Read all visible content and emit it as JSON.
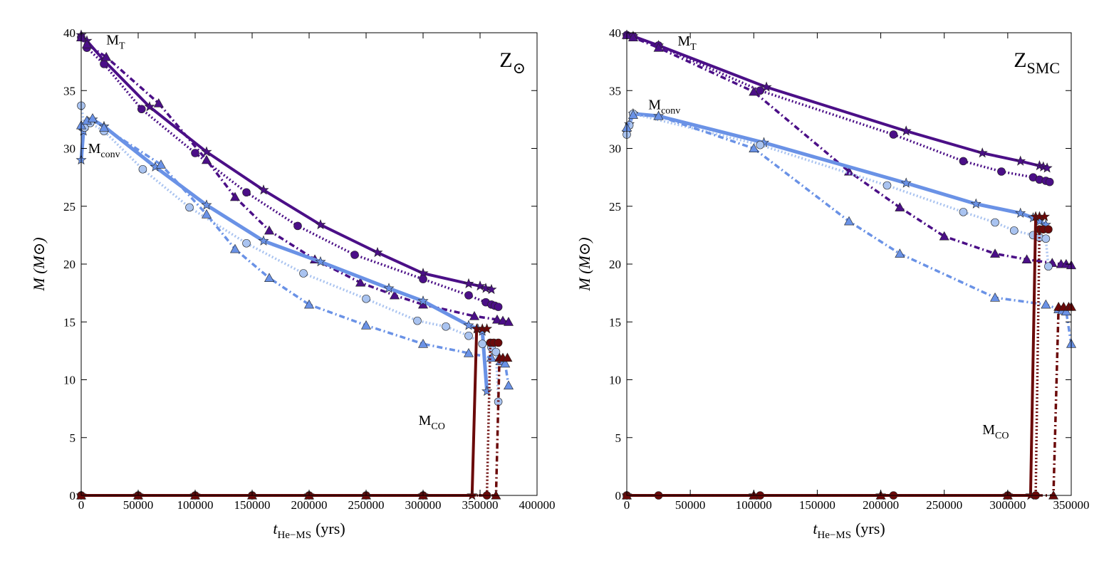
{
  "chart_data": [
    {
      "type": "line",
      "title": "Z⊙",
      "title_main": "Z",
      "title_sub": "⊙",
      "xlabel_main": "t",
      "xlabel_sub": "He−MS",
      "xlabel_unit": "(yrs)",
      "ylabel": "M (M⊙)",
      "xlim": [
        0,
        400000
      ],
      "ylim": [
        0,
        40
      ],
      "xticks": [
        0,
        50000,
        100000,
        150000,
        200000,
        250000,
        300000,
        350000,
        400000
      ],
      "xtick_labels": [
        "0",
        "50000",
        "100000",
        "150000",
        "200000",
        "250000",
        "300000",
        "350000",
        "400000"
      ],
      "yticks": [
        0,
        5,
        10,
        15,
        20,
        25,
        30,
        35,
        40
      ],
      "ytick_labels": [
        "0",
        "5",
        "10",
        "15",
        "20",
        "25",
        "30",
        "35",
        "40"
      ],
      "annotations": [
        {
          "id": "mt",
          "main": "M",
          "sub": "T",
          "x": 22000,
          "y": 39.0
        },
        {
          "id": "mconv",
          "main": "M",
          "sub": "conv",
          "x": 6000,
          "y": 29.6
        },
        {
          "id": "mco",
          "main": "M",
          "sub": "CO",
          "x": 296000,
          "y": 6.1
        }
      ],
      "series": [
        {
          "name": "M_T star",
          "group": "MT",
          "color": "#4b0f87",
          "style": "solid",
          "marker": "star",
          "x": [
            0,
            5000,
            20000,
            60000,
            110000,
            160000,
            210000,
            260000,
            300000,
            340000,
            350000,
            355000,
            360000
          ],
          "y": [
            39.8,
            39.3,
            37.6,
            33.6,
            29.7,
            26.4,
            23.4,
            21.0,
            19.2,
            18.3,
            18.1,
            17.9,
            17.8
          ]
        },
        {
          "name": "M_T circle",
          "group": "MT",
          "color": "#4b0f87",
          "style": "dotted",
          "marker": "circle",
          "x": [
            0,
            5000,
            20000,
            53000,
            100000,
            145000,
            190000,
            240000,
            300000,
            340000,
            355000,
            360000,
            363000,
            366000
          ],
          "y": [
            39.6,
            38.7,
            37.3,
            33.4,
            29.6,
            26.2,
            23.3,
            20.8,
            18.7,
            17.3,
            16.7,
            16.5,
            16.4,
            16.3
          ]
        },
        {
          "name": "M_T triangle",
          "group": "MT",
          "color": "#4b0f87",
          "style": "dashdot",
          "marker": "triangle",
          "x": [
            0,
            5000,
            22000,
            68000,
            110000,
            135000,
            165000,
            205000,
            245000,
            275000,
            300000,
            345000,
            365000,
            370000,
            375000
          ],
          "y": [
            39.6,
            39.0,
            37.9,
            33.9,
            29.0,
            25.8,
            22.9,
            20.4,
            18.4,
            17.3,
            16.5,
            15.5,
            15.2,
            15.1,
            15.0
          ]
        },
        {
          "name": "M_conv star",
          "group": "Mconv",
          "color": "#6a92e6",
          "style": "solid",
          "marker": "star",
          "width": 5,
          "x": [
            0,
            2000,
            6000,
            10000,
            20000,
            65000,
            110000,
            160000,
            210000,
            270000,
            300000,
            340000,
            348000,
            352000,
            356000
          ],
          "y": [
            29.0,
            31.5,
            32.3,
            32.5,
            31.9,
            28.4,
            25.1,
            22.0,
            20.2,
            17.9,
            16.8,
            14.7,
            14.4,
            14.2,
            9.0
          ]
        },
        {
          "name": "M_conv circle",
          "group": "Mconv",
          "color": "#a9c3f0",
          "style": "dotted",
          "marker": "circle",
          "x": [
            0,
            3000,
            8000,
            20000,
            54000,
            95000,
            145000,
            195000,
            250000,
            295000,
            320000,
            340000,
            352000,
            360000,
            364000,
            366000
          ],
          "y": [
            33.7,
            31.8,
            32.2,
            31.5,
            28.2,
            24.9,
            21.8,
            19.2,
            17.0,
            15.1,
            14.6,
            13.8,
            13.1,
            12.8,
            12.4,
            8.1
          ]
        },
        {
          "name": "M_conv triangle",
          "group": "Mconv",
          "color": "#6a92e6",
          "style": "dashdot",
          "marker": "triangle",
          "x": [
            0,
            5000,
            10000,
            20000,
            70000,
            110000,
            135000,
            165000,
            200000,
            250000,
            300000,
            340000,
            360000,
            368000,
            372000,
            375000
          ],
          "y": [
            32.0,
            32.4,
            32.6,
            31.8,
            28.6,
            24.3,
            21.3,
            18.8,
            16.5,
            14.7,
            13.1,
            12.3,
            11.9,
            11.6,
            11.4,
            9.5
          ]
        },
        {
          "name": "M_CO star",
          "group": "MCO",
          "color": "#6b0909",
          "style": "solid",
          "marker": "star",
          "x": [
            0,
            50000,
            100000,
            200000,
            300000,
            343000,
            347000,
            352000,
            356000
          ],
          "y": [
            0.0,
            0.0,
            0.0,
            0.0,
            0.0,
            0.0,
            14.4,
            14.4,
            14.4
          ]
        },
        {
          "name": "M_CO circle",
          "group": "MCO",
          "color": "#6b0909",
          "style": "dotted",
          "marker": "circle",
          "x": [
            0,
            50000,
            100000,
            150000,
            200000,
            250000,
            300000,
            356000,
            359000,
            362000,
            366000
          ],
          "y": [
            0.0,
            0.0,
            0.0,
            0.0,
            0.0,
            0.0,
            0.0,
            0.0,
            13.2,
            13.2,
            13.2
          ]
        },
        {
          "name": "M_CO triangle",
          "group": "MCO",
          "color": "#6b0909",
          "style": "dashdot",
          "marker": "triangle",
          "x": [
            0,
            50000,
            100000,
            150000,
            200000,
            250000,
            300000,
            364000,
            367000,
            370000,
            374000
          ],
          "y": [
            0.0,
            0.0,
            0.0,
            0.0,
            0.0,
            0.0,
            0.0,
            0.0,
            11.9,
            11.9,
            11.9
          ]
        }
      ]
    },
    {
      "type": "line",
      "title": "ZSMC",
      "title_main": "Z",
      "title_sub": "SMC",
      "xlabel_main": "t",
      "xlabel_sub": "He−MS",
      "xlabel_unit": "(yrs)",
      "ylabel": "M (M⊙)",
      "xlim": [
        0,
        350000
      ],
      "ylim": [
        0,
        40
      ],
      "xticks": [
        0,
        50000,
        100000,
        150000,
        200000,
        250000,
        300000,
        350000
      ],
      "xtick_labels": [
        "0",
        "50000",
        "100000",
        "150000",
        "200000",
        "250000",
        "300000",
        "350000"
      ],
      "yticks": [
        0,
        5,
        10,
        15,
        20,
        25,
        30,
        35,
        40
      ],
      "ytick_labels": [
        "0",
        "5",
        "10",
        "15",
        "20",
        "25",
        "30",
        "35",
        "40"
      ],
      "annotations": [
        {
          "id": "mt",
          "main": "M",
          "sub": "T",
          "x": 40000,
          "y": 38.9
        },
        {
          "id": "mconv",
          "main": "M",
          "sub": "conv",
          "x": 17000,
          "y": 33.4
        },
        {
          "id": "mco",
          "main": "M",
          "sub": "CO",
          "x": 280000,
          "y": 5.3
        }
      ],
      "series": [
        {
          "name": "M_T star",
          "group": "MT",
          "color": "#4b0f87",
          "style": "solid",
          "marker": "star",
          "x": [
            0,
            5000,
            25000,
            110000,
            220000,
            280000,
            310000,
            325000,
            328000,
            331000
          ],
          "y": [
            39.8,
            39.7,
            38.9,
            35.3,
            31.5,
            29.6,
            28.9,
            28.5,
            28.4,
            28.3
          ]
        },
        {
          "name": "M_T circle",
          "group": "MT",
          "color": "#4b0f87",
          "style": "dotted",
          "marker": "circle",
          "x": [
            0,
            5000,
            25000,
            105000,
            210000,
            265000,
            295000,
            320000,
            325000,
            330000,
            333000
          ],
          "y": [
            39.8,
            39.7,
            38.9,
            35.0,
            31.2,
            28.9,
            28.0,
            27.5,
            27.3,
            27.2,
            27.1
          ]
        },
        {
          "name": "M_T triangle",
          "group": "MT",
          "color": "#4b0f87",
          "style": "dashdot",
          "marker": "triangle",
          "x": [
            0,
            5000,
            25000,
            100000,
            175000,
            215000,
            250000,
            290000,
            315000,
            335000,
            342000,
            346000,
            350000
          ],
          "y": [
            39.8,
            39.6,
            38.7,
            34.9,
            28.0,
            24.9,
            22.4,
            20.9,
            20.4,
            20.1,
            20.0,
            20.0,
            19.9
          ]
        },
        {
          "name": "M_conv star",
          "group": "Mconv",
          "color": "#6a92e6",
          "style": "solid",
          "marker": "star",
          "width": 5,
          "x": [
            0,
            2000,
            5000,
            25000,
            108000,
            220000,
            275000,
            310000,
            320000,
            325000,
            330000
          ],
          "y": [
            31.4,
            32.1,
            33.0,
            32.8,
            30.5,
            27.0,
            25.2,
            24.4,
            24.0,
            23.7,
            23.4
          ]
        },
        {
          "name": "M_conv circle",
          "group": "Mconv",
          "color": "#a9c3f0",
          "style": "dotted",
          "marker": "circle",
          "x": [
            0,
            2000,
            5000,
            105000,
            205000,
            265000,
            290000,
            305000,
            320000,
            325000,
            330000,
            332000
          ],
          "y": [
            31.2,
            32.0,
            33.0,
            30.3,
            26.8,
            24.5,
            23.6,
            22.9,
            22.5,
            22.3,
            22.2,
            19.8
          ]
        },
        {
          "name": "M_conv triangle",
          "group": "Mconv",
          "color": "#6a92e6",
          "style": "dashdot",
          "marker": "triangle",
          "x": [
            0,
            5000,
            25000,
            100000,
            175000,
            215000,
            290000,
            330000,
            340000,
            343000,
            346000,
            350000
          ],
          "y": [
            31.8,
            32.9,
            32.8,
            30.0,
            23.7,
            20.9,
            17.1,
            16.5,
            16.1,
            16.0,
            15.9,
            13.1
          ]
        },
        {
          "name": "M_CO star",
          "group": "MCO",
          "color": "#6b0909",
          "style": "solid",
          "marker": "star",
          "x": [
            0,
            100000,
            200000,
            300000,
            318000,
            322000,
            325000,
            329000
          ],
          "y": [
            0.0,
            0.0,
            0.0,
            0.0,
            0.0,
            24.1,
            24.1,
            24.1
          ]
        },
        {
          "name": "M_CO circle",
          "group": "MCO",
          "color": "#6b0909",
          "style": "dotted",
          "marker": "circle",
          "x": [
            0,
            25000,
            105000,
            210000,
            300000,
            322000,
            325000,
            328000,
            332000
          ],
          "y": [
            0.0,
            0.0,
            0.0,
            0.0,
            0.0,
            0.0,
            23.0,
            23.0,
            23.0
          ]
        },
        {
          "name": "M_CO triangle",
          "group": "MCO",
          "color": "#6b0909",
          "style": "dashdot",
          "marker": "triangle",
          "x": [
            0,
            100000,
            200000,
            300000,
            336000,
            340000,
            344000,
            348000,
            350000
          ],
          "y": [
            0.0,
            0.0,
            0.0,
            0.0,
            0.0,
            16.3,
            16.3,
            16.3,
            16.3
          ]
        }
      ]
    }
  ]
}
